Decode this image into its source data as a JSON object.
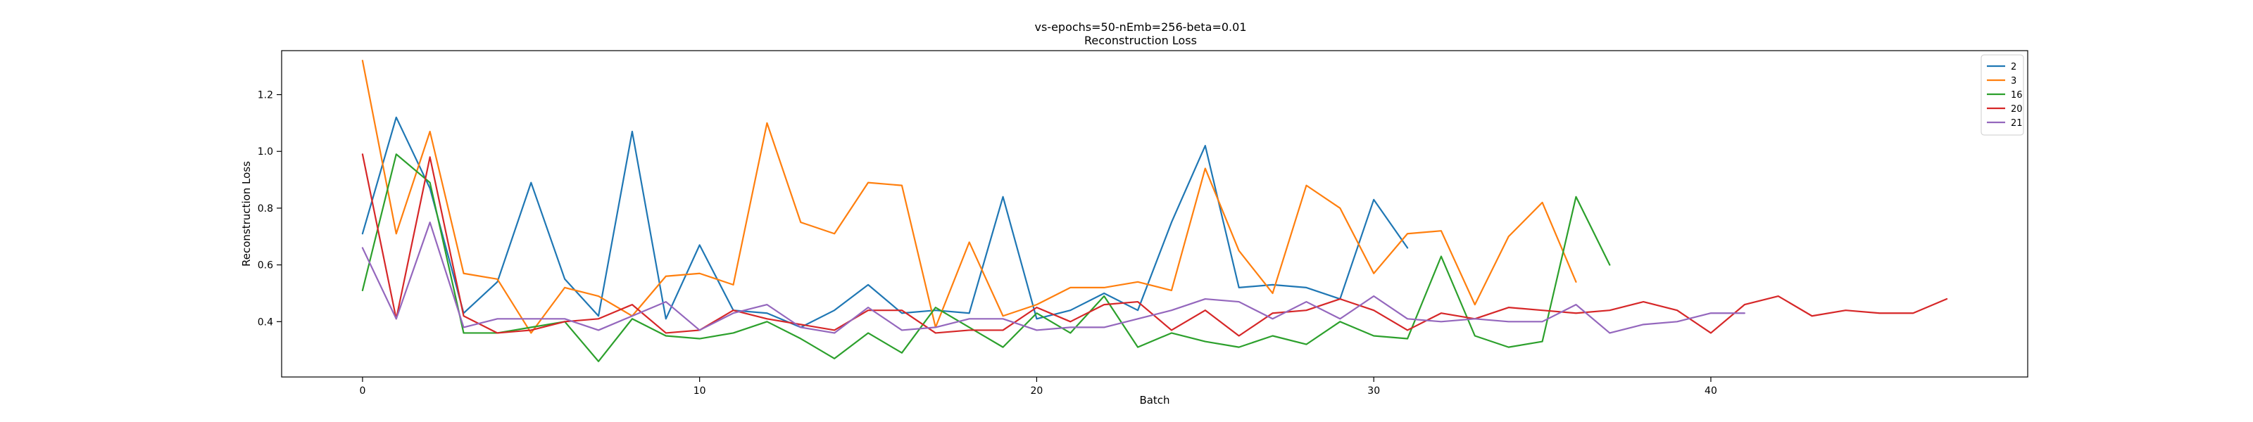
{
  "chart_data": {
    "type": "line",
    "title": "vs-epochs=50-nEmb=256-beta=0.01",
    "subtitle": "Reconstruction Loss",
    "xlabel": "Batch",
    "ylabel": "Reconstruction Loss",
    "xlim": [
      -2.4,
      49.4
    ],
    "ylim": [
      0.205,
      1.355
    ],
    "xticks": [
      0,
      10,
      20,
      30,
      40
    ],
    "yticks": [
      0.4,
      0.6,
      0.8,
      1.0,
      1.2
    ],
    "xtick_labels": [
      "0",
      "10",
      "20",
      "30",
      "40"
    ],
    "ytick_labels": [
      "0.4",
      "0.6",
      "0.8",
      "1.0",
      "1.2"
    ],
    "grid": false,
    "legend": "top-right",
    "series": [
      {
        "name": "2",
        "color": "#1f77b4",
        "values": [
          0.71,
          1.12,
          0.87,
          0.43,
          0.54,
          0.89,
          0.55,
          0.42,
          1.07,
          0.41,
          0.67,
          0.44,
          0.43,
          0.38,
          0.44,
          0.53,
          0.43,
          0.44,
          0.43,
          0.84,
          0.41,
          0.44,
          0.5,
          0.44,
          0.75,
          1.02,
          0.52,
          0.53,
          0.52,
          0.48,
          0.83,
          0.66
        ]
      },
      {
        "name": "3",
        "color": "#ff7f0e",
        "values": [
          1.32,
          0.71,
          1.07,
          0.57,
          0.55,
          0.36,
          0.52,
          0.49,
          0.42,
          0.56,
          0.57,
          0.53,
          1.1,
          0.75,
          0.71,
          0.89,
          0.88,
          0.38,
          0.68,
          0.42,
          0.46,
          0.52,
          0.52,
          0.54,
          0.51,
          0.94,
          0.65,
          0.5,
          0.88,
          0.8,
          0.57,
          0.71,
          0.72,
          0.46,
          0.7,
          0.82,
          0.54
        ]
      },
      {
        "name": "16",
        "color": "#2ca02c",
        "values": [
          0.51,
          0.99,
          0.89,
          0.36,
          0.36,
          0.38,
          0.4,
          0.26,
          0.41,
          0.35,
          0.34,
          0.36,
          0.4,
          0.34,
          0.27,
          0.36,
          0.29,
          0.45,
          0.38,
          0.31,
          0.43,
          0.36,
          0.49,
          0.31,
          0.36,
          0.33,
          0.31,
          0.35,
          0.32,
          0.4,
          0.35,
          0.34,
          0.63,
          0.35,
          0.31,
          0.33,
          0.84,
          0.6
        ]
      },
      {
        "name": "20",
        "color": "#d62728",
        "values": [
          0.99,
          0.41,
          0.98,
          0.42,
          0.36,
          0.37,
          0.4,
          0.41,
          0.46,
          0.36,
          0.37,
          0.44,
          0.41,
          0.39,
          0.37,
          0.44,
          0.44,
          0.36,
          0.37,
          0.37,
          0.45,
          0.4,
          0.46,
          0.47,
          0.37,
          0.44,
          0.35,
          0.43,
          0.44,
          0.48,
          0.44,
          0.37,
          0.43,
          0.41,
          0.45,
          0.44,
          0.43,
          0.44,
          0.47,
          0.44,
          0.36,
          0.46,
          0.49,
          0.42,
          0.44,
          0.43,
          0.43,
          0.48
        ]
      },
      {
        "name": "21",
        "color": "#9467bd",
        "values": [
          0.66,
          0.41,
          0.75,
          0.38,
          0.41,
          0.41,
          0.41,
          0.37,
          0.42,
          0.47,
          0.37,
          0.43,
          0.46,
          0.38,
          0.36,
          0.45,
          0.37,
          0.38,
          0.41,
          0.41,
          0.37,
          0.38,
          0.38,
          0.41,
          0.44,
          0.48,
          0.47,
          0.41,
          0.47,
          0.41,
          0.49,
          0.41,
          0.4,
          0.41,
          0.4,
          0.4,
          0.46,
          0.36,
          0.39,
          0.4,
          0.43,
          0.43
        ]
      }
    ]
  }
}
